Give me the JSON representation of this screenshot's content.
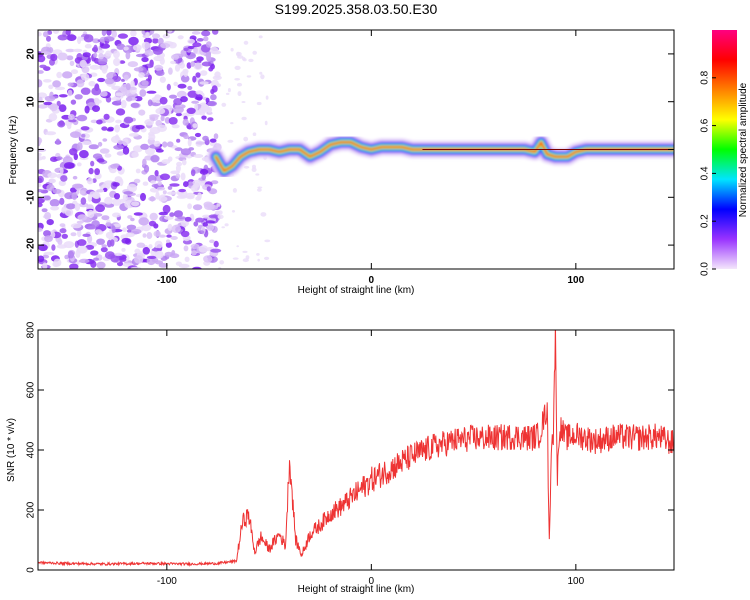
{
  "title": "S199.2025.358.03.50.E30",
  "chart_data": [
    {
      "type": "heatmap",
      "name": "spectrogram",
      "xlabel": "Height of straight line (km)",
      "ylabel": "Frequency (Hz)",
      "xlim": [
        -163,
        148
      ],
      "ylim": [
        -25,
        25
      ],
      "x_ticks": [
        -100,
        0,
        100
      ],
      "y_ticks": [
        -20,
        -10,
        0,
        10,
        20
      ],
      "colorbar": {
        "label": "Normalized spectral amplitude",
        "range": [
          0,
          1
        ],
        "ticks": [
          0.0,
          0.2,
          0.4,
          0.6,
          0.8
        ],
        "colormap": [
          "#f4e6fb",
          "#9933ff",
          "#0000ff",
          "#00e5ff",
          "#00ff00",
          "#ffff00",
          "#ff8000",
          "#ff0000",
          "#ff0080"
        ]
      },
      "noise_region_x": [
        -163,
        -75
      ],
      "signal_trace": [
        {
          "x": -76,
          "f": -1.5
        },
        {
          "x": -72,
          "f": -4.5
        },
        {
          "x": -68,
          "f": -3.5
        },
        {
          "x": -64,
          "f": -1.5
        },
        {
          "x": -60,
          "f": -0.5
        },
        {
          "x": -55,
          "f": 0
        },
        {
          "x": -50,
          "f": 0
        },
        {
          "x": -45,
          "f": -0.5
        },
        {
          "x": -40,
          "f": 0
        },
        {
          "x": -35,
          "f": 0
        },
        {
          "x": -30,
          "f": -1.5
        },
        {
          "x": -25,
          "f": -0.5
        },
        {
          "x": -20,
          "f": 1
        },
        {
          "x": -15,
          "f": 1.5
        },
        {
          "x": -10,
          "f": 1.5
        },
        {
          "x": -5,
          "f": 0.5
        },
        {
          "x": 0,
          "f": 0
        },
        {
          "x": 5,
          "f": 0.5
        },
        {
          "x": 10,
          "f": 0.5
        },
        {
          "x": 15,
          "f": 0.5
        },
        {
          "x": 20,
          "f": 0
        },
        {
          "x": 40,
          "f": 0
        },
        {
          "x": 60,
          "f": 0
        },
        {
          "x": 75,
          "f": 0
        },
        {
          "x": 80,
          "f": -0.5
        },
        {
          "x": 83,
          "f": 1.5
        },
        {
          "x": 86,
          "f": -1
        },
        {
          "x": 90,
          "f": -1.5
        },
        {
          "x": 96,
          "f": -1.5
        },
        {
          "x": 100,
          "f": -0.5
        },
        {
          "x": 105,
          "f": 0
        },
        {
          "x": 120,
          "f": 0
        },
        {
          "x": 148,
          "f": 0
        }
      ]
    },
    {
      "type": "line",
      "name": "snr",
      "xlabel": "Height of straight line (km)",
      "ylabel": "SNR (10 * v/v)",
      "xlim": [
        -163,
        148
      ],
      "ylim": [
        0,
        800
      ],
      "x_ticks": [
        -100,
        0,
        100
      ],
      "y_ticks": [
        0,
        200,
        400,
        600,
        800
      ],
      "color": "#ee3333",
      "series": [
        {
          "name": "SNR",
          "x": [
            -163,
            -150,
            -130,
            -110,
            -90,
            -75,
            -66,
            -63,
            -60,
            -57,
            -54,
            -50,
            -45,
            -42,
            -40,
            -37,
            -34,
            -30,
            -25,
            -20,
            -15,
            -10,
            -5,
            0,
            10,
            20,
            30,
            40,
            50,
            60,
            70,
            78,
            82,
            86,
            87,
            88,
            89,
            90,
            91,
            92,
            95,
            100,
            110,
            120,
            130,
            140,
            148
          ],
          "y": [
            25,
            22,
            20,
            22,
            20,
            22,
            30,
            160,
            185,
            60,
            110,
            70,
            120,
            80,
            370,
            100,
            50,
            120,
            150,
            190,
            210,
            240,
            270,
            300,
            340,
            380,
            410,
            430,
            440,
            440,
            445,
            440,
            450,
            540,
            90,
            420,
            450,
            800,
            300,
            480,
            440,
            450,
            430,
            445,
            440,
            445,
            420
          ]
        }
      ]
    }
  ]
}
